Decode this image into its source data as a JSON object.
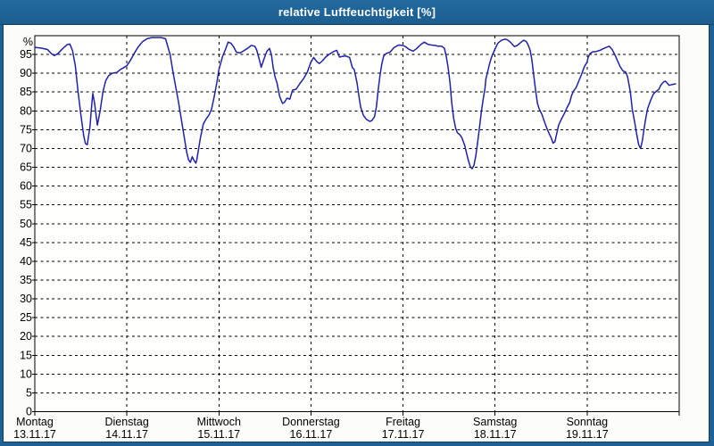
{
  "window": {
    "title": "relative Luftfeuchtigkeit [%]"
  },
  "colors": {
    "titlebar_bg": "#1f6296",
    "titlebar_text": "#ffffff",
    "window_border": "#1e6195",
    "page_bg": "#fcfdf9",
    "plot_bg": "#fefefc",
    "grid": "#000000",
    "frame": "#000000",
    "line": "#2121aa"
  },
  "chart_data": {
    "type": "line",
    "title": "relative Luftfeuchtigkeit [%]",
    "grid": true,
    "legend": "none",
    "y_axis": {
      "unit": "%",
      "min": 0,
      "max": 100,
      "tick_step": 5,
      "tick_labels": [
        0,
        5,
        10,
        15,
        20,
        25,
        30,
        35,
        40,
        45,
        50,
        55,
        60,
        65,
        70,
        75,
        80,
        85,
        90,
        95
      ]
    },
    "x_axis": {
      "unit": "day",
      "range_days": 7,
      "days": [
        {
          "name": "Montag",
          "date": "13.11.17"
        },
        {
          "name": "Dienstag",
          "date": "14.11.17"
        },
        {
          "name": "Mittwoch",
          "date": "15.11.17"
        },
        {
          "name": "Donnerstag",
          "date": "16.11.17"
        },
        {
          "name": "Freitag",
          "date": "17.11.17"
        },
        {
          "name": "Samstag",
          "date": "18.11.17"
        },
        {
          "name": "Sonntag",
          "date": "19.11.17"
        }
      ]
    },
    "series": [
      {
        "name": "relative Luftfeuchtigkeit",
        "color": "#2121aa",
        "points": [
          [
            0.0,
            96.9
          ],
          [
            0.07,
            96.7
          ],
          [
            0.14,
            96.3
          ],
          [
            0.18,
            95.2
          ],
          [
            0.21,
            94.7
          ],
          [
            0.25,
            95.2
          ],
          [
            0.3,
            96.5
          ],
          [
            0.35,
            97.6
          ],
          [
            0.38,
            97.8
          ],
          [
            0.41,
            96.0
          ],
          [
            0.44,
            92.0
          ],
          [
            0.47,
            85.0
          ],
          [
            0.5,
            79.0
          ],
          [
            0.53,
            73.5
          ],
          [
            0.55,
            71.3
          ],
          [
            0.57,
            71.0
          ],
          [
            0.6,
            76.0
          ],
          [
            0.62,
            82.0
          ],
          [
            0.63,
            84.6
          ],
          [
            0.65,
            82.0
          ],
          [
            0.67,
            78.0
          ],
          [
            0.68,
            76.2
          ],
          [
            0.71,
            80.0
          ],
          [
            0.74,
            85.0
          ],
          [
            0.77,
            88.0
          ],
          [
            0.8,
            89.3
          ],
          [
            0.84,
            90.0
          ],
          [
            0.89,
            90.2
          ],
          [
            0.93,
            91.0
          ],
          [
            0.96,
            91.4
          ],
          [
            1.0,
            92.0
          ],
          [
            1.04,
            93.5
          ],
          [
            1.08,
            95.3
          ],
          [
            1.12,
            96.9
          ],
          [
            1.17,
            98.4
          ],
          [
            1.22,
            99.2
          ],
          [
            1.27,
            99.5
          ],
          [
            1.37,
            99.5
          ],
          [
            1.42,
            99.2
          ],
          [
            1.44,
            97.5
          ],
          [
            1.47,
            95.0
          ],
          [
            1.5,
            90.5
          ],
          [
            1.53,
            86.5
          ],
          [
            1.56,
            82.5
          ],
          [
            1.59,
            78.0
          ],
          [
            1.62,
            73.5
          ],
          [
            1.65,
            69.0
          ],
          [
            1.67,
            67.0
          ],
          [
            1.69,
            66.3
          ],
          [
            1.71,
            67.8
          ],
          [
            1.73,
            66.8
          ],
          [
            1.75,
            66.1
          ],
          [
            1.76,
            67.0
          ],
          [
            1.78,
            70.0
          ],
          [
            1.8,
            73.0
          ],
          [
            1.83,
            76.5
          ],
          [
            1.86,
            77.8
          ],
          [
            1.89,
            78.8
          ],
          [
            1.92,
            80.4
          ],
          [
            1.95,
            83.9
          ],
          [
            1.98,
            87.8
          ],
          [
            2.0,
            91.0
          ],
          [
            2.04,
            94.5
          ],
          [
            2.07,
            96.3
          ],
          [
            2.1,
            98.3
          ],
          [
            2.13,
            98.0
          ],
          [
            2.16,
            97.0
          ],
          [
            2.19,
            95.6
          ],
          [
            2.23,
            95.4
          ],
          [
            2.27,
            96.0
          ],
          [
            2.31,
            96.6
          ],
          [
            2.35,
            97.4
          ],
          [
            2.39,
            97.2
          ],
          [
            2.41,
            96.2
          ],
          [
            2.44,
            93.5
          ],
          [
            2.46,
            91.6
          ],
          [
            2.49,
            93.8
          ],
          [
            2.52,
            95.8
          ],
          [
            2.55,
            96.6
          ],
          [
            2.57,
            95.0
          ],
          [
            2.59,
            91.5
          ],
          [
            2.61,
            89.0
          ],
          [
            2.63,
            87.5
          ],
          [
            2.66,
            83.8
          ],
          [
            2.69,
            82.0
          ],
          [
            2.71,
            82.2
          ],
          [
            2.74,
            83.4
          ],
          [
            2.77,
            83.1
          ],
          [
            2.8,
            85.5
          ],
          [
            2.84,
            85.8
          ],
          [
            2.88,
            87.3
          ],
          [
            2.92,
            88.6
          ],
          [
            2.96,
            90.3
          ],
          [
            3.0,
            93.0
          ],
          [
            3.03,
            94.2
          ],
          [
            3.06,
            93.2
          ],
          [
            3.09,
            92.6
          ],
          [
            3.12,
            93.2
          ],
          [
            3.16,
            94.3
          ],
          [
            3.2,
            95.1
          ],
          [
            3.24,
            95.7
          ],
          [
            3.28,
            96.1
          ],
          [
            3.31,
            94.3
          ],
          [
            3.34,
            94.5
          ],
          [
            3.38,
            94.6
          ],
          [
            3.42,
            94.2
          ],
          [
            3.45,
            91.5
          ],
          [
            3.47,
            91.0
          ],
          [
            3.5,
            87.5
          ],
          [
            3.52,
            84.0
          ],
          [
            3.54,
            81.0
          ],
          [
            3.57,
            78.8
          ],
          [
            3.6,
            77.8
          ],
          [
            3.64,
            77.2
          ],
          [
            3.66,
            77.4
          ],
          [
            3.69,
            78.4
          ],
          [
            3.71,
            81.0
          ],
          [
            3.73,
            85.5
          ],
          [
            3.75,
            89.5
          ],
          [
            3.77,
            92.5
          ],
          [
            3.79,
            94.6
          ],
          [
            3.82,
            95.3
          ],
          [
            3.86,
            95.6
          ],
          [
            3.9,
            96.8
          ],
          [
            3.94,
            97.4
          ],
          [
            3.96,
            97.5
          ],
          [
            4.0,
            97.4
          ],
          [
            4.03,
            97.0
          ],
          [
            4.07,
            96.3
          ],
          [
            4.11,
            95.9
          ],
          [
            4.15,
            96.6
          ],
          [
            4.19,
            97.6
          ],
          [
            4.23,
            98.3
          ],
          [
            4.27,
            97.7
          ],
          [
            4.31,
            97.5
          ],
          [
            4.35,
            97.4
          ],
          [
            4.38,
            97.2
          ],
          [
            4.42,
            97.2
          ],
          [
            4.45,
            96.6
          ],
          [
            4.47,
            94.5
          ],
          [
            4.49,
            91.5
          ],
          [
            4.51,
            87.5
          ],
          [
            4.53,
            82.0
          ],
          [
            4.55,
            78.0
          ],
          [
            4.57,
            75.5
          ],
          [
            4.59,
            74.2
          ],
          [
            4.62,
            73.6
          ],
          [
            4.64,
            72.8
          ],
          [
            4.67,
            70.8
          ],
          [
            4.69,
            68.8
          ],
          [
            4.71,
            66.8
          ],
          [
            4.73,
            65.2
          ],
          [
            4.75,
            64.6
          ],
          [
            4.77,
            65.5
          ],
          [
            4.79,
            68.0
          ],
          [
            4.81,
            71.5
          ],
          [
            4.83,
            75.5
          ],
          [
            4.85,
            79.5
          ],
          [
            4.87,
            83.0
          ],
          [
            4.89,
            86.0
          ],
          [
            4.9,
            88.5
          ],
          [
            4.92,
            90.5
          ],
          [
            4.94,
            92.5
          ],
          [
            4.96,
            94.2
          ],
          [
            5.0,
            96.5
          ],
          [
            5.03,
            98.0
          ],
          [
            5.07,
            98.8
          ],
          [
            5.11,
            99.1
          ],
          [
            5.14,
            98.8
          ],
          [
            5.17,
            98.2
          ],
          [
            5.21,
            97.1
          ],
          [
            5.24,
            97.4
          ],
          [
            5.28,
            98.2
          ],
          [
            5.31,
            98.8
          ],
          [
            5.34,
            98.4
          ],
          [
            5.36,
            97.5
          ],
          [
            5.38,
            96.2
          ],
          [
            5.4,
            93.5
          ],
          [
            5.42,
            89.5
          ],
          [
            5.44,
            85.5
          ],
          [
            5.46,
            82.0
          ],
          [
            5.48,
            80.5
          ],
          [
            5.51,
            79.0
          ],
          [
            5.53,
            77.5
          ],
          [
            5.56,
            75.5
          ],
          [
            5.59,
            73.8
          ],
          [
            5.61,
            72.8
          ],
          [
            5.63,
            71.4
          ],
          [
            5.65,
            71.8
          ],
          [
            5.67,
            74.0
          ],
          [
            5.69,
            76.2
          ],
          [
            5.72,
            77.8
          ],
          [
            5.75,
            79.2
          ],
          [
            5.78,
            80.8
          ],
          [
            5.81,
            82.2
          ],
          [
            5.83,
            84.0
          ],
          [
            5.85,
            85.2
          ],
          [
            5.88,
            86.2
          ],
          [
            5.91,
            88.0
          ],
          [
            5.94,
            89.8
          ],
          [
            5.97,
            91.8
          ],
          [
            6.0,
            93.0
          ],
          [
            6.01,
            94.2
          ],
          [
            6.03,
            95.2
          ],
          [
            6.06,
            95.7
          ],
          [
            6.1,
            95.8
          ],
          [
            6.14,
            96.1
          ],
          [
            6.17,
            96.5
          ],
          [
            6.21,
            96.9
          ],
          [
            6.24,
            97.2
          ],
          [
            6.27,
            96.4
          ],
          [
            6.3,
            95.0
          ],
          [
            6.33,
            93.3
          ],
          [
            6.36,
            91.7
          ],
          [
            6.39,
            90.6
          ],
          [
            6.42,
            90.3
          ],
          [
            6.44,
            89.0
          ],
          [
            6.47,
            85.0
          ],
          [
            6.49,
            80.5
          ],
          [
            6.52,
            76.5
          ],
          [
            6.54,
            73.5
          ],
          [
            6.56,
            71.0
          ],
          [
            6.58,
            70.0
          ],
          [
            6.6,
            72.0
          ],
          [
            6.62,
            75.5
          ],
          [
            6.64,
            78.5
          ],
          [
            6.66,
            80.8
          ],
          [
            6.69,
            82.8
          ],
          [
            6.72,
            84.5
          ],
          [
            6.75,
            85.2
          ],
          [
            6.78,
            85.8
          ],
          [
            6.8,
            86.8
          ],
          [
            6.83,
            87.7
          ],
          [
            6.85,
            87.9
          ],
          [
            6.87,
            87.4
          ],
          [
            6.89,
            86.8
          ],
          [
            6.91,
            86.9
          ],
          [
            6.94,
            87.1
          ],
          [
            6.96,
            87.2
          ]
        ]
      }
    ]
  }
}
